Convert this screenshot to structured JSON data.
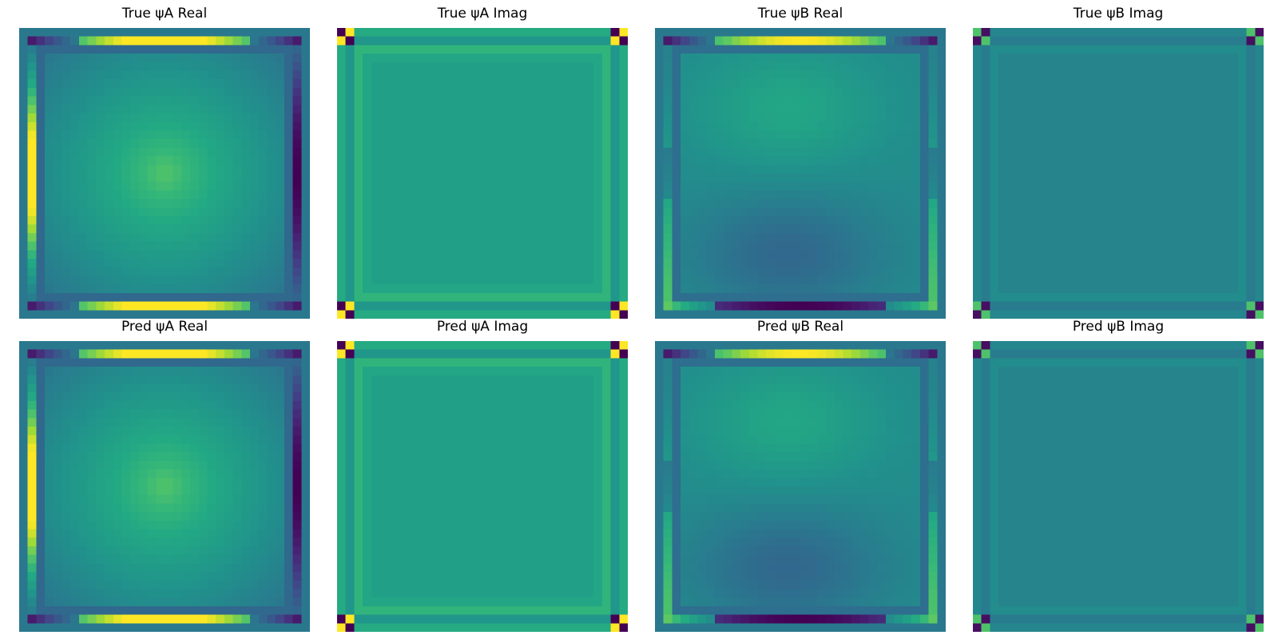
{
  "chart_data": [
    {
      "type": "heatmap",
      "title": "True ψA Real",
      "field": "psiA_real",
      "grid": [
        34,
        34
      ],
      "colormap": "viridis",
      "axes": "off",
      "grid_lines": false
    },
    {
      "type": "heatmap",
      "title": "True ψA Imag",
      "field": "psiA_imag",
      "grid": [
        34,
        34
      ],
      "colormap": "viridis",
      "axes": "off",
      "grid_lines": false
    },
    {
      "type": "heatmap",
      "title": "True ψB Real",
      "field": "psiB_real",
      "grid": [
        34,
        34
      ],
      "colormap": "viridis",
      "axes": "off",
      "grid_lines": false
    },
    {
      "type": "heatmap",
      "title": "True ψB Imag",
      "field": "psiB_imag",
      "grid": [
        34,
        34
      ],
      "colormap": "viridis",
      "axes": "off",
      "grid_lines": false
    },
    {
      "type": "heatmap",
      "title": "Pred ψA Real",
      "field": "psiA_real",
      "grid": [
        34,
        34
      ],
      "colormap": "viridis",
      "axes": "off",
      "grid_lines": false
    },
    {
      "type": "heatmap",
      "title": "Pred ψA Imag",
      "field": "psiA_imag",
      "grid": [
        34,
        34
      ],
      "colormap": "viridis",
      "axes": "off",
      "grid_lines": false
    },
    {
      "type": "heatmap",
      "title": "Pred ψB Real",
      "field": "psiB_real",
      "grid": [
        34,
        34
      ],
      "colormap": "viridis",
      "axes": "off",
      "grid_lines": false
    },
    {
      "type": "heatmap",
      "title": "Pred ψB Imag",
      "field": "psiB_imag",
      "grid": [
        34,
        34
      ],
      "colormap": "viridis",
      "axes": "off",
      "grid_lines": false
    }
  ]
}
